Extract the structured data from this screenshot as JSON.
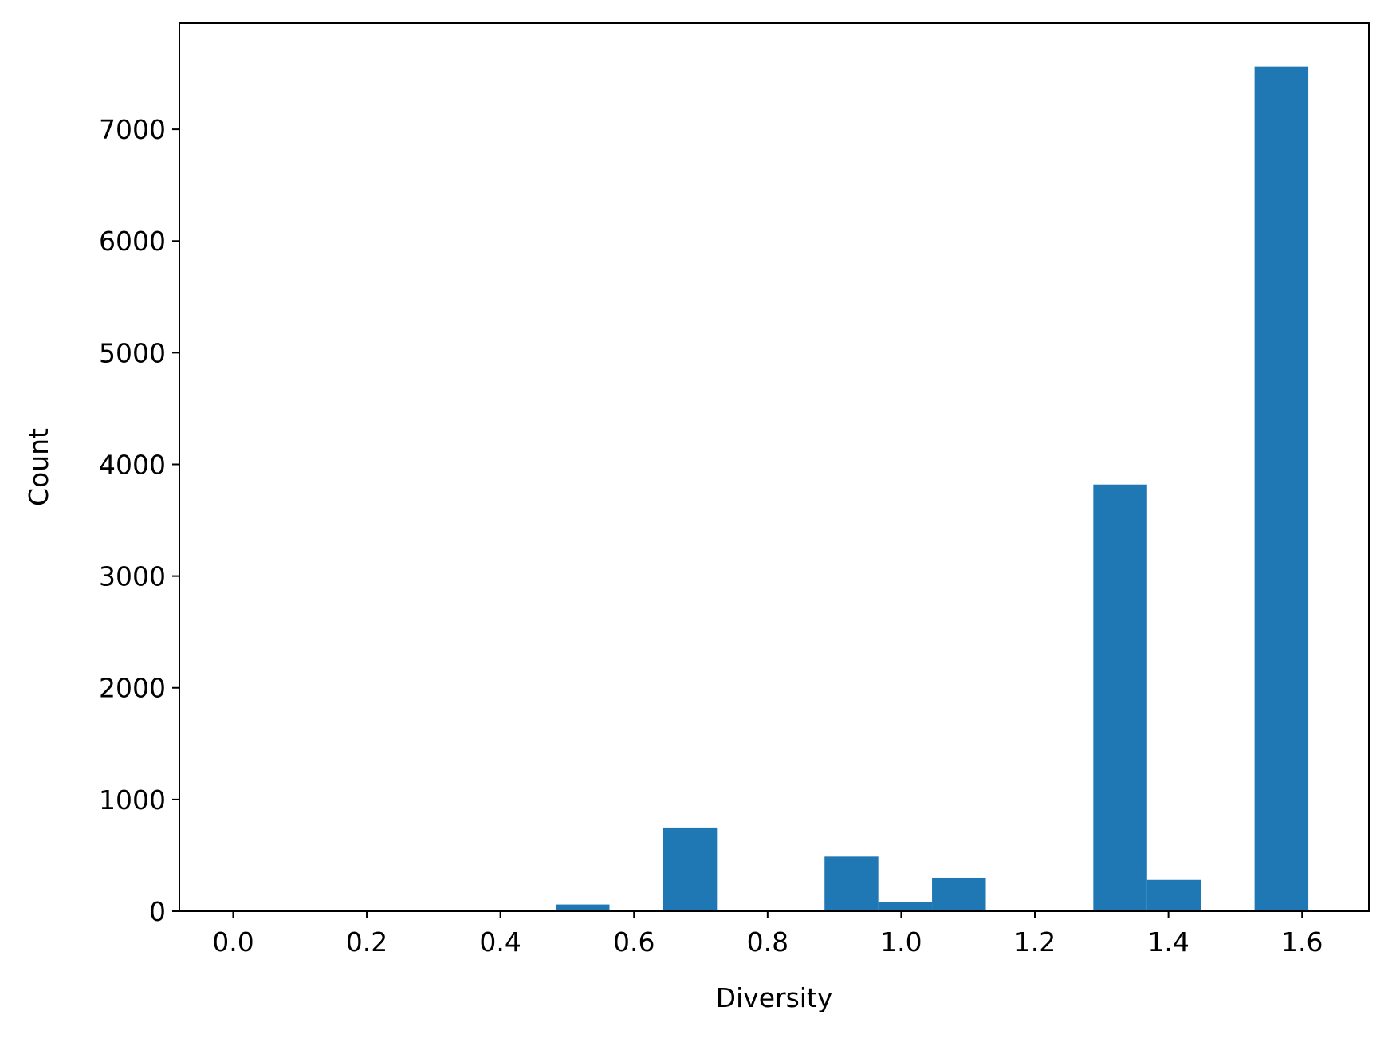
{
  "chart_data": {
    "type": "bar",
    "title": "",
    "xlabel": "Diversity",
    "ylabel": "Count",
    "xlim": [
      -0.0805,
      1.7
    ],
    "ylim": [
      0,
      7950
    ],
    "xticks": [
      {
        "value": 0.0,
        "label": "0.0"
      },
      {
        "value": 0.2,
        "label": "0.2"
      },
      {
        "value": 0.4,
        "label": "0.4"
      },
      {
        "value": 0.6,
        "label": "0.6"
      },
      {
        "value": 0.8,
        "label": "0.8"
      },
      {
        "value": 1.0,
        "label": "1.0"
      },
      {
        "value": 1.2,
        "label": "1.2"
      },
      {
        "value": 1.4,
        "label": "1.4"
      },
      {
        "value": 1.6,
        "label": "1.6"
      }
    ],
    "yticks": [
      {
        "value": 0,
        "label": "0"
      },
      {
        "value": 1000,
        "label": "1000"
      },
      {
        "value": 2000,
        "label": "2000"
      },
      {
        "value": 3000,
        "label": "3000"
      },
      {
        "value": 4000,
        "label": "4000"
      },
      {
        "value": 5000,
        "label": "5000"
      },
      {
        "value": 6000,
        "label": "6000"
      },
      {
        "value": 7000,
        "label": "7000"
      }
    ],
    "bar_color": "#1f77b4",
    "grid": false,
    "bins": [
      {
        "x0": 0.0,
        "x1": 0.0805,
        "count": 10
      },
      {
        "x0": 0.0805,
        "x1": 0.1609,
        "count": 0
      },
      {
        "x0": 0.1609,
        "x1": 0.2414,
        "count": 0
      },
      {
        "x0": 0.2414,
        "x1": 0.3219,
        "count": 0
      },
      {
        "x0": 0.3219,
        "x1": 0.4024,
        "count": 0
      },
      {
        "x0": 0.4024,
        "x1": 0.4828,
        "count": 0
      },
      {
        "x0": 0.4828,
        "x1": 0.5633,
        "count": 60
      },
      {
        "x0": 0.5633,
        "x1": 0.6438,
        "count": 10
      },
      {
        "x0": 0.6438,
        "x1": 0.7242,
        "count": 750
      },
      {
        "x0": 0.7242,
        "x1": 0.8047,
        "count": 0
      },
      {
        "x0": 0.8047,
        "x1": 0.8852,
        "count": 0
      },
      {
        "x0": 0.8852,
        "x1": 0.9657,
        "count": 490
      },
      {
        "x0": 0.9657,
        "x1": 1.0461,
        "count": 80
      },
      {
        "x0": 1.0461,
        "x1": 1.1266,
        "count": 300
      },
      {
        "x0": 1.1266,
        "x1": 1.2071,
        "count": 0
      },
      {
        "x0": 1.2071,
        "x1": 1.2875,
        "count": 0
      },
      {
        "x0": 1.2875,
        "x1": 1.368,
        "count": 3820
      },
      {
        "x0": 1.368,
        "x1": 1.4485,
        "count": 280
      },
      {
        "x0": 1.4485,
        "x1": 1.5289,
        "count": 0
      },
      {
        "x0": 1.5289,
        "x1": 1.6094,
        "count": 7560
      }
    ]
  }
}
